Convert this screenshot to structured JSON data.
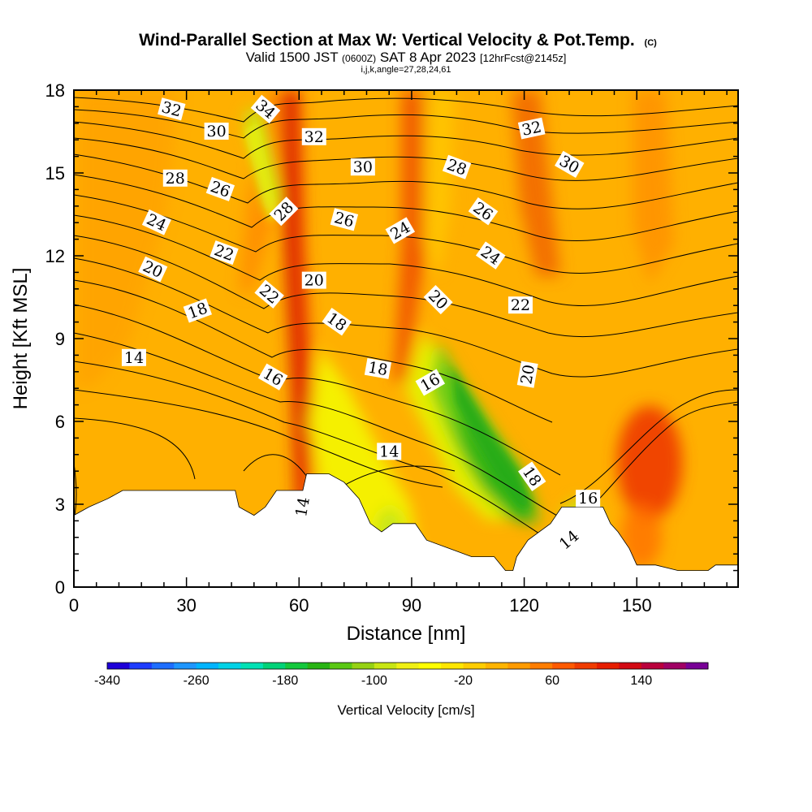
{
  "chart_data": {
    "type": "contour",
    "title": "Wind-Parallel Section at Max W: Vertical Velocity & Pot.Temp.",
    "title_mark": "(C)",
    "subtitle": {
      "valid": "Valid 1500 JST",
      "utc": "(0600Z)",
      "date": "SAT 8 Apr 2023",
      "forecast": "[12hrFcst@2145z]"
    },
    "params": "i,j,k,angle=27,28,24,61",
    "xlabel": "Distance [nm]",
    "ylabel": "Height [Kft MSL]",
    "xlim": [
      0,
      177
    ],
    "ylim": [
      0,
      18
    ],
    "x_ticks": [
      "0",
      "30",
      "60",
      "90",
      "120",
      "150"
    ],
    "x_tick_values": [
      0,
      30,
      60,
      90,
      120,
      150
    ],
    "y_ticks": [
      "0",
      "3",
      "6",
      "9",
      "12",
      "15",
      "18"
    ],
    "y_tick_values": [
      0,
      3,
      6,
      9,
      12,
      15,
      18
    ],
    "colorbar": {
      "label": "Vertical Velocity [cm/s]",
      "tick_labels": [
        "-340",
        "-260",
        "-180",
        "-100",
        "-20",
        "60",
        "140"
      ],
      "colors": [
        "#1e00d8",
        "#1e3cff",
        "#1e6eff",
        "#1e96ff",
        "#00b4ff",
        "#00d2e6",
        "#00e1b4",
        "#00d278",
        "#14c83c",
        "#28b414",
        "#5ac814",
        "#96d214",
        "#c8e614",
        "#f0f014",
        "#ffff00",
        "#ffe600",
        "#ffcd00",
        "#ffb400",
        "#ff9b00",
        "#ff7d00",
        "#ff5a00",
        "#f03c00",
        "#e61e00",
        "#d20a14",
        "#b9003c",
        "#a00064",
        "#780096"
      ]
    },
    "terrain": [
      [
        0,
        2.6
      ],
      [
        4,
        2.9
      ],
      [
        9,
        3.2
      ],
      [
        13,
        3.5
      ],
      [
        43,
        3.5
      ],
      [
        44,
        2.9
      ],
      [
        48,
        2.6
      ],
      [
        51,
        2.9
      ],
      [
        54,
        3.5
      ],
      [
        61,
        3.5
      ],
      [
        62,
        4.1
      ],
      [
        68,
        4.1
      ],
      [
        72,
        3.8
      ],
      [
        76,
        3.2
      ],
      [
        79,
        2.3
      ],
      [
        82,
        2.0
      ],
      [
        85,
        2.3
      ],
      [
        91,
        2.3
      ],
      [
        94,
        1.7
      ],
      [
        100,
        1.4
      ],
      [
        106,
        1.1
      ],
      [
        112,
        1.1
      ],
      [
        115,
        0.6
      ],
      [
        117,
        0.6
      ],
      [
        118,
        1.1
      ],
      [
        121,
        1.7
      ],
      [
        127,
        2.3
      ],
      [
        130,
        2.9
      ],
      [
        141,
        2.9
      ],
      [
        143,
        2.3
      ],
      [
        145,
        2.0
      ],
      [
        148,
        1.4
      ],
      [
        150,
        0.8
      ],
      [
        155,
        0.8
      ],
      [
        161,
        0.6
      ],
      [
        169,
        0.6
      ],
      [
        171,
        0.8
      ],
      [
        177,
        0.8
      ]
    ],
    "isentrope_labels": [
      {
        "text": "32",
        "x": 26,
        "y": 17.3,
        "rot": 15
      },
      {
        "text": "30",
        "x": 38,
        "y": 16.5,
        "rot": 0
      },
      {
        "text": "34",
        "x": 51,
        "y": 17.3,
        "rot": 40
      },
      {
        "text": "32",
        "x": 64,
        "y": 16.3,
        "rot": 0
      },
      {
        "text": "30",
        "x": 77,
        "y": 15.2,
        "rot": 0
      },
      {
        "text": "28",
        "x": 102,
        "y": 15.2,
        "rot": 20
      },
      {
        "text": "32",
        "x": 122,
        "y": 16.6,
        "rot": -12
      },
      {
        "text": "30",
        "x": 132,
        "y": 15.3,
        "rot": 30
      },
      {
        "text": "28",
        "x": 27,
        "y": 14.8,
        "rot": 0
      },
      {
        "text": "26",
        "x": 39,
        "y": 14.4,
        "rot": 20
      },
      {
        "text": "28",
        "x": 56,
        "y": 13.6,
        "rot": -45
      },
      {
        "text": "26",
        "x": 72,
        "y": 13.3,
        "rot": 15
      },
      {
        "text": "26",
        "x": 109,
        "y": 13.6,
        "rot": 35
      },
      {
        "text": "24",
        "x": 22,
        "y": 13.2,
        "rot": 25
      },
      {
        "text": "24",
        "x": 87,
        "y": 12.9,
        "rot": -30
      },
      {
        "text": "22",
        "x": 40,
        "y": 12.1,
        "rot": 20
      },
      {
        "text": "24",
        "x": 111,
        "y": 12.0,
        "rot": 35
      },
      {
        "text": "20",
        "x": 21,
        "y": 11.5,
        "rot": 25
      },
      {
        "text": "20",
        "x": 64,
        "y": 11.1,
        "rot": 0
      },
      {
        "text": "22",
        "x": 52,
        "y": 10.6,
        "rot": 40
      },
      {
        "text": "20",
        "x": 97,
        "y": 10.4,
        "rot": 45
      },
      {
        "text": "22",
        "x": 119,
        "y": 10.2,
        "rot": 0
      },
      {
        "text": "18",
        "x": 33,
        "y": 10.0,
        "rot": -20
      },
      {
        "text": "18",
        "x": 70,
        "y": 9.6,
        "rot": 35
      },
      {
        "text": "14",
        "x": 16,
        "y": 8.3,
        "rot": 0
      },
      {
        "text": "18",
        "x": 81,
        "y": 7.9,
        "rot": 10
      },
      {
        "text": "20",
        "x": 121,
        "y": 7.7,
        "rot": -80
      },
      {
        "text": "16",
        "x": 53,
        "y": 7.6,
        "rot": 30
      },
      {
        "text": "16",
        "x": 95,
        "y": 7.4,
        "rot": -30
      },
      {
        "text": "14",
        "x": 84,
        "y": 4.9,
        "rot": 0
      },
      {
        "text": "18",
        "x": 122,
        "y": 4.0,
        "rot": 55
      },
      {
        "text": "16",
        "x": 137,
        "y": 3.2,
        "rot": 0
      },
      {
        "text": "14",
        "x": 61,
        "y": 2.9,
        "rot": -80
      },
      {
        "text": "14",
        "x": 132,
        "y": 1.7,
        "rot": -40
      }
    ]
  }
}
